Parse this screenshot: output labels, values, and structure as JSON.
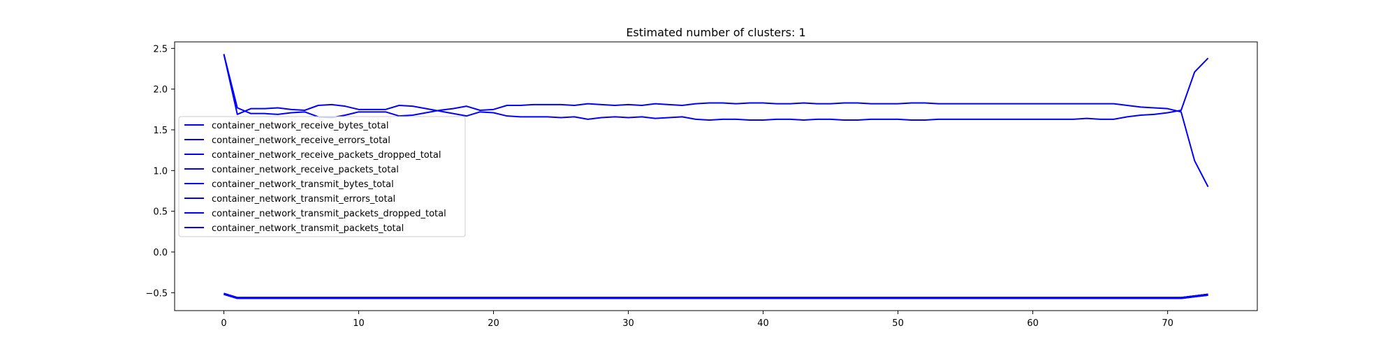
{
  "chart_data": {
    "type": "line",
    "title": "Estimated number of clusters: 1",
    "xlabel": "",
    "ylabel": "",
    "xlim": [
      -3.65,
      76.65
    ],
    "ylim": [
      -0.72,
      2.58
    ],
    "x_ticks": [
      0,
      10,
      20,
      30,
      40,
      50,
      60,
      70
    ],
    "x_tick_labels": [
      "0",
      "10",
      "20",
      "30",
      "40",
      "50",
      "60",
      "70"
    ],
    "y_ticks": [
      -0.5,
      0.0,
      0.5,
      1.0,
      1.5,
      2.0,
      2.5
    ],
    "y_tick_labels": [
      "−0.5",
      "0.0",
      "0.5",
      "1.0",
      "1.5",
      "2.0",
      "2.5"
    ],
    "grid": false,
    "legend_position": "center-left",
    "series_color": "#0000ff",
    "series": [
      {
        "name": "container_network_receive_bytes_total",
        "values": [
          2.43,
          1.77,
          1.7,
          1.7,
          1.69,
          1.71,
          1.72,
          1.66,
          1.65,
          1.68,
          1.72,
          1.72,
          1.72,
          1.67,
          1.68,
          1.71,
          1.74,
          1.76,
          1.79,
          1.74,
          1.75,
          1.8,
          1.8,
          1.81,
          1.81,
          1.81,
          1.8,
          1.82,
          1.81,
          1.8,
          1.81,
          1.8,
          1.82,
          1.81,
          1.8,
          1.82,
          1.83,
          1.83,
          1.82,
          1.83,
          1.83,
          1.82,
          1.82,
          1.83,
          1.82,
          1.82,
          1.83,
          1.83,
          1.82,
          1.82,
          1.82,
          1.83,
          1.83,
          1.82,
          1.82,
          1.82,
          1.82,
          1.82,
          1.82,
          1.82,
          1.82,
          1.82,
          1.82,
          1.82,
          1.82,
          1.82,
          1.82,
          1.8,
          1.78,
          1.77,
          1.76,
          1.72,
          1.12,
          0.8
        ]
      },
      {
        "name": "container_network_receive_errors_total",
        "values": [
          -0.51,
          -0.56,
          -0.56,
          -0.56,
          -0.56,
          -0.56,
          -0.56,
          -0.56,
          -0.56,
          -0.56,
          -0.56,
          -0.56,
          -0.56,
          -0.56,
          -0.56,
          -0.56,
          -0.56,
          -0.56,
          -0.56,
          -0.56,
          -0.56,
          -0.56,
          -0.56,
          -0.56,
          -0.56,
          -0.56,
          -0.56,
          -0.56,
          -0.56,
          -0.56,
          -0.56,
          -0.56,
          -0.56,
          -0.56,
          -0.56,
          -0.56,
          -0.56,
          -0.56,
          -0.56,
          -0.56,
          -0.56,
          -0.56,
          -0.56,
          -0.56,
          -0.56,
          -0.56,
          -0.56,
          -0.56,
          -0.56,
          -0.56,
          -0.56,
          -0.56,
          -0.56,
          -0.56,
          -0.56,
          -0.56,
          -0.56,
          -0.56,
          -0.56,
          -0.56,
          -0.56,
          -0.56,
          -0.56,
          -0.56,
          -0.56,
          -0.56,
          -0.56,
          -0.56,
          -0.56,
          -0.56,
          -0.56,
          -0.56,
          -0.54,
          -0.52
        ]
      },
      {
        "name": "container_network_receive_packets_dropped_total",
        "values": [
          -0.51,
          -0.56,
          -0.56,
          -0.56,
          -0.56,
          -0.56,
          -0.56,
          -0.56,
          -0.56,
          -0.56,
          -0.56,
          -0.56,
          -0.56,
          -0.56,
          -0.56,
          -0.56,
          -0.56,
          -0.56,
          -0.56,
          -0.56,
          -0.56,
          -0.56,
          -0.56,
          -0.56,
          -0.56,
          -0.56,
          -0.56,
          -0.56,
          -0.56,
          -0.56,
          -0.56,
          -0.56,
          -0.56,
          -0.56,
          -0.56,
          -0.56,
          -0.56,
          -0.56,
          -0.56,
          -0.56,
          -0.56,
          -0.56,
          -0.56,
          -0.56,
          -0.56,
          -0.56,
          -0.56,
          -0.56,
          -0.56,
          -0.56,
          -0.56,
          -0.56,
          -0.56,
          -0.56,
          -0.56,
          -0.56,
          -0.56,
          -0.56,
          -0.56,
          -0.56,
          -0.56,
          -0.56,
          -0.56,
          -0.56,
          -0.56,
          -0.56,
          -0.56,
          -0.56,
          -0.56,
          -0.56,
          -0.56,
          -0.56,
          -0.54,
          -0.52
        ]
      },
      {
        "name": "container_network_receive_packets_total",
        "values": [
          2.43,
          1.69,
          1.76,
          1.76,
          1.77,
          1.75,
          1.74,
          1.8,
          1.81,
          1.79,
          1.75,
          1.75,
          1.75,
          1.8,
          1.79,
          1.76,
          1.73,
          1.7,
          1.67,
          1.72,
          1.71,
          1.67,
          1.66,
          1.66,
          1.66,
          1.65,
          1.66,
          1.63,
          1.65,
          1.66,
          1.65,
          1.66,
          1.64,
          1.65,
          1.66,
          1.63,
          1.62,
          1.63,
          1.63,
          1.62,
          1.62,
          1.63,
          1.63,
          1.62,
          1.63,
          1.63,
          1.62,
          1.62,
          1.63,
          1.63,
          1.63,
          1.62,
          1.62,
          1.63,
          1.63,
          1.63,
          1.63,
          1.63,
          1.63,
          1.63,
          1.63,
          1.63,
          1.63,
          1.63,
          1.64,
          1.63,
          1.63,
          1.66,
          1.68,
          1.69,
          1.71,
          1.74,
          2.21,
          2.38
        ]
      },
      {
        "name": "container_network_transmit_bytes_total",
        "values": [
          -0.52,
          -0.57,
          -0.57,
          -0.57,
          -0.57,
          -0.57,
          -0.57,
          -0.57,
          -0.57,
          -0.57,
          -0.57,
          -0.57,
          -0.57,
          -0.57,
          -0.57,
          -0.57,
          -0.57,
          -0.57,
          -0.57,
          -0.57,
          -0.57,
          -0.57,
          -0.57,
          -0.57,
          -0.57,
          -0.57,
          -0.57,
          -0.57,
          -0.57,
          -0.57,
          -0.57,
          -0.57,
          -0.57,
          -0.57,
          -0.57,
          -0.57,
          -0.57,
          -0.57,
          -0.57,
          -0.57,
          -0.57,
          -0.57,
          -0.57,
          -0.57,
          -0.57,
          -0.57,
          -0.57,
          -0.57,
          -0.57,
          -0.57,
          -0.57,
          -0.57,
          -0.57,
          -0.57,
          -0.57,
          -0.57,
          -0.57,
          -0.57,
          -0.57,
          -0.57,
          -0.57,
          -0.57,
          -0.57,
          -0.57,
          -0.57,
          -0.57,
          -0.57,
          -0.57,
          -0.57,
          -0.57,
          -0.57,
          -0.57,
          -0.55,
          -0.53
        ]
      },
      {
        "name": "container_network_transmit_errors_total",
        "values": [
          -0.51,
          -0.56,
          -0.56,
          -0.56,
          -0.56,
          -0.56,
          -0.56,
          -0.56,
          -0.56,
          -0.56,
          -0.56,
          -0.56,
          -0.56,
          -0.56,
          -0.56,
          -0.56,
          -0.56,
          -0.56,
          -0.56,
          -0.56,
          -0.56,
          -0.56,
          -0.56,
          -0.56,
          -0.56,
          -0.56,
          -0.56,
          -0.56,
          -0.56,
          -0.56,
          -0.56,
          -0.56,
          -0.56,
          -0.56,
          -0.56,
          -0.56,
          -0.56,
          -0.56,
          -0.56,
          -0.56,
          -0.56,
          -0.56,
          -0.56,
          -0.56,
          -0.56,
          -0.56,
          -0.56,
          -0.56,
          -0.56,
          -0.56,
          -0.56,
          -0.56,
          -0.56,
          -0.56,
          -0.56,
          -0.56,
          -0.56,
          -0.56,
          -0.56,
          -0.56,
          -0.56,
          -0.56,
          -0.56,
          -0.56,
          -0.56,
          -0.56,
          -0.56,
          -0.56,
          -0.56,
          -0.56,
          -0.56,
          -0.56,
          -0.54,
          -0.52
        ]
      },
      {
        "name": "container_network_transmit_packets_dropped_total",
        "values": [
          -0.51,
          -0.56,
          -0.56,
          -0.56,
          -0.56,
          -0.56,
          -0.56,
          -0.56,
          -0.56,
          -0.56,
          -0.56,
          -0.56,
          -0.56,
          -0.56,
          -0.56,
          -0.56,
          -0.56,
          -0.56,
          -0.56,
          -0.56,
          -0.56,
          -0.56,
          -0.56,
          -0.56,
          -0.56,
          -0.56,
          -0.56,
          -0.56,
          -0.56,
          -0.56,
          -0.56,
          -0.56,
          -0.56,
          -0.56,
          -0.56,
          -0.56,
          -0.56,
          -0.56,
          -0.56,
          -0.56,
          -0.56,
          -0.56,
          -0.56,
          -0.56,
          -0.56,
          -0.56,
          -0.56,
          -0.56,
          -0.56,
          -0.56,
          -0.56,
          -0.56,
          -0.56,
          -0.56,
          -0.56,
          -0.56,
          -0.56,
          -0.56,
          -0.56,
          -0.56,
          -0.56,
          -0.56,
          -0.56,
          -0.56,
          -0.56,
          -0.56,
          -0.56,
          -0.56,
          -0.56,
          -0.56,
          -0.56,
          -0.56,
          -0.54,
          -0.52
        ]
      },
      {
        "name": "container_network_transmit_packets_total",
        "values": [
          -0.52,
          -0.57,
          -0.57,
          -0.57,
          -0.57,
          -0.57,
          -0.57,
          -0.57,
          -0.57,
          -0.57,
          -0.57,
          -0.57,
          -0.57,
          -0.57,
          -0.57,
          -0.57,
          -0.57,
          -0.57,
          -0.57,
          -0.57,
          -0.57,
          -0.57,
          -0.57,
          -0.57,
          -0.57,
          -0.57,
          -0.57,
          -0.57,
          -0.57,
          -0.57,
          -0.57,
          -0.57,
          -0.57,
          -0.57,
          -0.57,
          -0.57,
          -0.57,
          -0.57,
          -0.57,
          -0.57,
          -0.57,
          -0.57,
          -0.57,
          -0.57,
          -0.57,
          -0.57,
          -0.57,
          -0.57,
          -0.57,
          -0.57,
          -0.57,
          -0.57,
          -0.57,
          -0.57,
          -0.57,
          -0.57,
          -0.57,
          -0.57,
          -0.57,
          -0.57,
          -0.57,
          -0.57,
          -0.57,
          -0.57,
          -0.57,
          -0.57,
          -0.57,
          -0.57,
          -0.57,
          -0.57,
          -0.57,
          -0.57,
          -0.55,
          -0.53
        ]
      }
    ]
  }
}
